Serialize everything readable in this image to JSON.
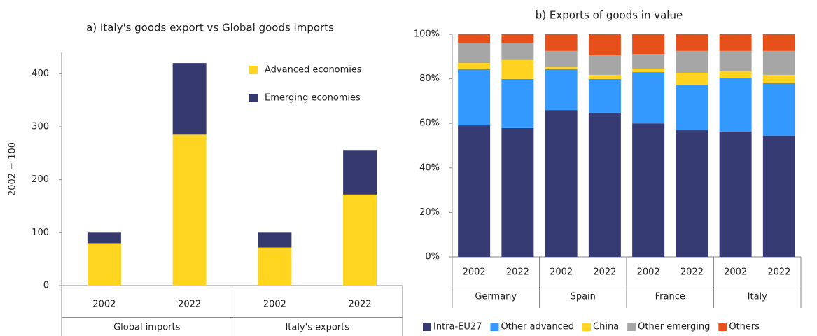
{
  "chart_data": [
    {
      "type": "stacked_bar",
      "title": "a) Italy's goods export vs Global goods imports",
      "y_label": "2002 = 100",
      "categories": [
        "2002",
        "2022",
        "2002",
        "2022"
      ],
      "groups": [
        "Global imports",
        "Italy's exports"
      ],
      "series": [
        {
          "name": "Advanced economies",
          "color": "#ffd520",
          "values": [
            80,
            285,
            72,
            172
          ]
        },
        {
          "name": "Emerging economies",
          "color": "#35396e",
          "values": [
            20,
            135,
            28,
            84
          ]
        }
      ],
      "ylim": [
        0,
        440
      ],
      "yticks": [
        0,
        100,
        200,
        300,
        400
      ],
      "grid": false,
      "legend": "top-right"
    },
    {
      "type": "stacked_bar",
      "title": "b) Exports of goods in value",
      "categories": [
        "2002",
        "2022",
        "2002",
        "2022",
        "2002",
        "2022",
        "2002",
        "2022"
      ],
      "groups": [
        "Germany",
        "Spain",
        "France",
        "Italy"
      ],
      "series": [
        {
          "name": "Intra-EU27",
          "color": "#363b73",
          "values": [
            59.1,
            57.9,
            66,
            64.8,
            60,
            56.9,
            56.3,
            54.4
          ]
        },
        {
          "name": "Other advanced",
          "color": "#3399ff",
          "values": [
            25.2,
            22,
            18.3,
            15.1,
            23,
            20.5,
            24.2,
            23.6
          ]
        },
        {
          "name": "China",
          "color": "#ffd320",
          "values": [
            2.8,
            8.5,
            0.9,
            1.9,
            1.6,
            5.3,
            2.8,
            3.8
          ]
        },
        {
          "name": "Other emerging",
          "color": "#a6a6a6",
          "values": [
            9.1,
            7.8,
            7.3,
            8.8,
            6.6,
            9.8,
            9.2,
            10.7
          ]
        },
        {
          "name": "Others",
          "color": "#e8501b",
          "values": [
            3.8,
            3.8,
            7.5,
            9.4,
            8.8,
            7.5,
            7.5,
            7.5
          ]
        }
      ],
      "ylim": [
        0,
        100
      ],
      "yticks": [
        {
          "value": 0,
          "label": "0%"
        },
        {
          "value": 20,
          "label": "20%"
        },
        {
          "value": 40,
          "label": "40%"
        },
        {
          "value": 60,
          "label": "60%"
        },
        {
          "value": 80,
          "label": "80%"
        },
        {
          "value": 100,
          "label": "100%"
        }
      ],
      "grid": false,
      "legend": "bottom"
    }
  ]
}
